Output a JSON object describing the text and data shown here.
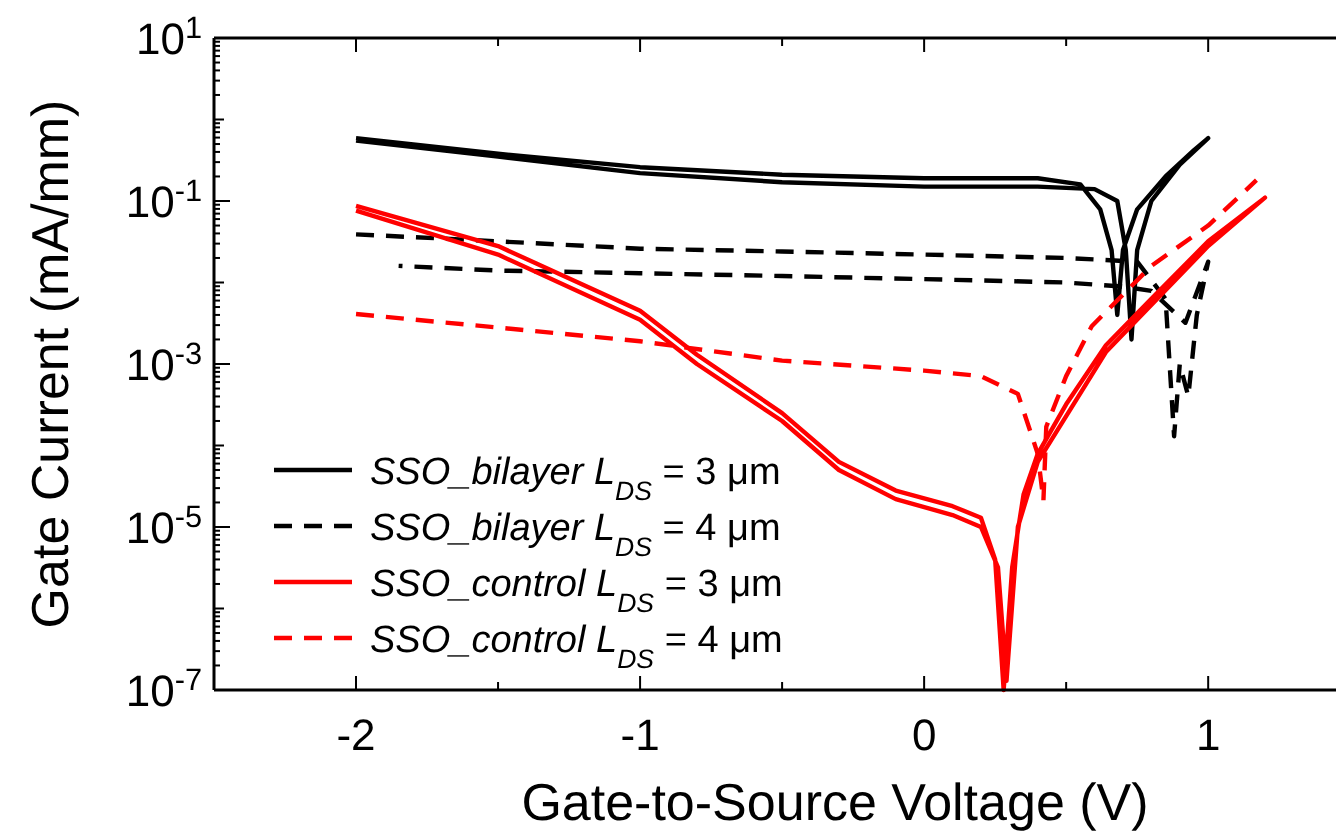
{
  "chart_data": {
    "type": "line",
    "xlabel": "Gate-to-Source Voltage (V)",
    "ylabel": "Gate Current (mA/mm)",
    "log": "y",
    "grid": false,
    "legend": "bottom left",
    "xlim": [
      -2.5,
      1.45
    ],
    "ylim": [
      1e-07,
      10
    ],
    "xticks": [
      -2,
      {
        "value": -1.5,
        "label": null
      },
      -1,
      {
        "value": -0.5,
        "label": null
      },
      0,
      {
        "value": 0.5,
        "label": null
      },
      1
    ],
    "yticks": [
      {
        "value": 10,
        "label": "10$^{1}$"
      },
      {
        "value": 1,
        "label": null
      },
      {
        "value": 0.1,
        "label": "10$^{-1}$"
      },
      {
        "value": 0.01,
        "label": null
      },
      {
        "value": 0.001,
        "label": "10$^{-3}$"
      },
      {
        "value": 0.0001,
        "label": null
      },
      {
        "value": 1e-05,
        "label": "10$^{-5}$"
      },
      {
        "value": 1e-06,
        "label": null
      },
      {
        "value": 1e-07,
        "label": "10$^{-7}$"
      }
    ],
    "series": [
      {
        "name": "SSO_bilayer L$_{DS}$ = 3 μm",
        "color": "#000000",
        "line_style": "solid",
        "x": [
          -2,
          -1.5,
          -1,
          -0.5,
          0,
          0.4,
          0.55,
          0.62,
          0.66,
          0.68,
          0.7,
          0.75,
          0.85,
          0.95,
          1.0,
          0.9,
          0.8,
          0.75,
          0.73,
          0.71,
          0.68,
          0.6,
          0.4,
          0,
          -0.5,
          -1,
          -1.5,
          -2
        ],
        "values": [
          0.59,
          0.38,
          0.26,
          0.21,
          0.19,
          0.19,
          0.16,
          0.079,
          0.025,
          0.004,
          0.025,
          0.079,
          0.2,
          0.42,
          0.59,
          0.28,
          0.1,
          0.025,
          0.002,
          0.025,
          0.1,
          0.14,
          0.15,
          0.15,
          0.17,
          0.22,
          0.35,
          0.55
        ]
      },
      {
        "name": "SSO_bilayer L$_{DS}$ = 4 μm",
        "color": "#000000",
        "line_style": "dashed",
        "x": [
          -2,
          -1.5,
          -1,
          -0.5,
          0,
          0.5,
          0.75,
          0.85,
          0.88,
          0.9,
          0.93,
          0.96,
          1.0,
          0.92,
          0.8,
          0.7,
          0.5,
          0,
          -0.5,
          -1,
          -1.5,
          -1.85
        ],
        "values": [
          0.039,
          0.032,
          0.026,
          0.024,
          0.022,
          0.02,
          0.018,
          0.0063,
          0.00013,
          0.001,
          0.0004,
          0.004,
          0.018,
          0.0032,
          0.0079,
          0.0089,
          0.01,
          0.011,
          0.012,
          0.013,
          0.014,
          0.016
        ]
      },
      {
        "name": "SSO_control L$_{DS}$ = 3 μm",
        "color": "#ff0000",
        "line_style": "solid",
        "x": [
          -2,
          -1.5,
          -1,
          -0.8,
          -0.5,
          -0.3,
          -0.1,
          0.1,
          0.2,
          0.25,
          0.28,
          0.31,
          0.35,
          0.4,
          0.5,
          0.64,
          0.8,
          1.0,
          1.2,
          1.0,
          0.64,
          0.4,
          0.33,
          0.29,
          0.26,
          0.2,
          0.1,
          -0.1,
          -0.3,
          -0.5,
          -0.8,
          -1,
          -1.5,
          -2
        ],
        "values": [
          0.087,
          0.028,
          0.0045,
          0.0013,
          0.00025,
          6.3e-05,
          2.8e-05,
          1.8e-05,
          1.3e-05,
          4e-06,
          1e-07,
          3.2e-06,
          2.5e-05,
          7.9e-05,
          0.00032,
          0.0017,
          0.0063,
          0.032,
          0.11,
          0.028,
          0.0014,
          6.3e-05,
          1e-05,
          1.3e-07,
          3.2e-06,
          1e-05,
          1.4e-05,
          2.2e-05,
          5e-05,
          0.0002,
          0.001,
          0.0035,
          0.022,
          0.076
        ]
      },
      {
        "name": "SSO_control L$_{DS}$ = 4 μm",
        "color": "#ff0000",
        "line_style": "dashed",
        "x": [
          -2,
          -1.5,
          -1,
          -0.5,
          0,
          0.2,
          0.33,
          0.4,
          0.42,
          0.43,
          0.5,
          0.59,
          0.8,
          1.0,
          1.17
        ],
        "values": [
          0.0041,
          0.0028,
          0.0019,
          0.0011,
          0.00083,
          0.00071,
          0.00043,
          7.9e-05,
          2.1e-05,
          0.00017,
          0.00071,
          0.0029,
          0.016,
          0.05,
          0.18
        ]
      }
    ]
  }
}
